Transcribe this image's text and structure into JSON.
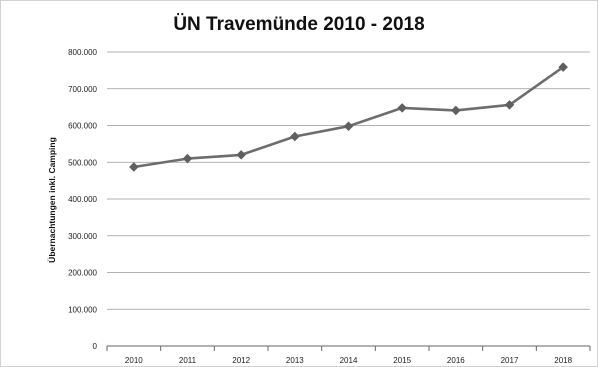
{
  "chart_data": {
    "type": "line",
    "title": "ÜN Travemünde 2010 - 2018",
    "xlabel": "",
    "ylabel": "Übernachtungen inkl. Camping",
    "categories": [
      "2010",
      "2011",
      "2012",
      "2013",
      "2014",
      "2015",
      "2016",
      "2017",
      "2018"
    ],
    "series": [
      {
        "name": "",
        "values": [
          487000,
          510000,
          520000,
          570000,
          598000,
          648000,
          641000,
          656000,
          759000
        ]
      }
    ],
    "ylim": [
      0,
      800000
    ],
    "yticks": [
      0,
      100000,
      200000,
      300000,
      400000,
      500000,
      600000,
      700000,
      800000
    ],
    "ytick_labels": [
      "0",
      "100.000",
      "200.000",
      "300.000",
      "400.000",
      "500.000",
      "600.000",
      "700.000",
      "800.000"
    ],
    "grid": true,
    "legend": "none",
    "colors": {
      "line": "#6d6d6d",
      "marker": "#5f5f5f",
      "grid": "#999999",
      "axis": "#666666",
      "border": "#c8c8c8"
    }
  }
}
